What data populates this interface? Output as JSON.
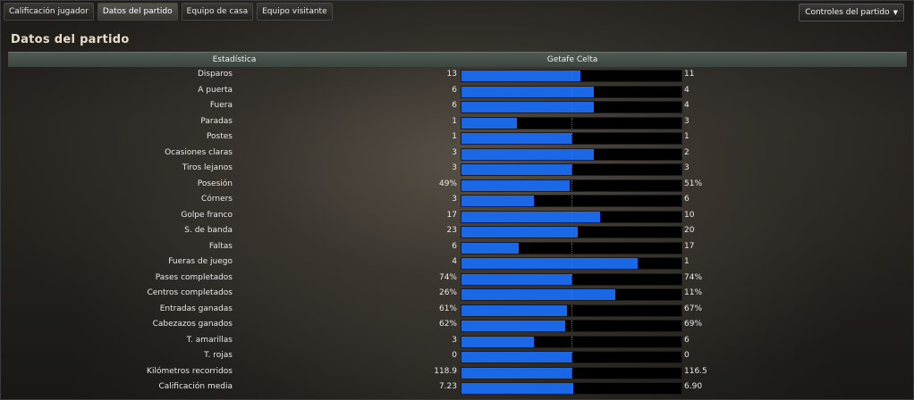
{
  "tabs": [
    {
      "label": "Calificación jugador"
    },
    {
      "label": "Datos del partido"
    },
    {
      "label": "Equipo de casa"
    },
    {
      "label": "Equipo visitante"
    }
  ],
  "active_tab": 1,
  "controls_label": "Controles del partido",
  "page_title": "Datos del partido",
  "table": {
    "stat_header": "Estadística",
    "match_header": "Getafe Celta",
    "rows": [
      {
        "label": "Disparos",
        "home": "13",
        "away": "11",
        "home_share": 0.54
      },
      {
        "label": "A puerta",
        "home": "6",
        "away": "4",
        "home_share": 0.6
      },
      {
        "label": "Fuera",
        "home": "6",
        "away": "4",
        "home_share": 0.6
      },
      {
        "label": "Paradas",
        "home": "1",
        "away": "3",
        "home_share": 0.25
      },
      {
        "label": "Postes",
        "home": "1",
        "away": "1",
        "home_share": 0.5
      },
      {
        "label": "Ocasiones claras",
        "home": "3",
        "away": "2",
        "home_share": 0.6
      },
      {
        "label": "Tiros lejanos",
        "home": "3",
        "away": "3",
        "home_share": 0.5
      },
      {
        "label": "Posesión",
        "home": "49%",
        "away": "51%",
        "home_share": 0.49
      },
      {
        "label": "Córners",
        "home": "3",
        "away": "6",
        "home_share": 0.33
      },
      {
        "label": "Golpe franco",
        "home": "17",
        "away": "10",
        "home_share": 0.63
      },
      {
        "label": "S. de banda",
        "home": "23",
        "away": "20",
        "home_share": 0.53
      },
      {
        "label": "Faltas",
        "home": "6",
        "away": "17",
        "home_share": 0.26
      },
      {
        "label": "Fueras de juego",
        "home": "4",
        "away": "1",
        "home_share": 0.8
      },
      {
        "label": "Pases completados",
        "home": "74%",
        "away": "74%",
        "home_share": 0.5
      },
      {
        "label": "Centros completados",
        "home": "26%",
        "away": "11%",
        "home_share": 0.7
      },
      {
        "label": "Entradas ganadas",
        "home": "61%",
        "away": "67%",
        "home_share": 0.48
      },
      {
        "label": "Cabezazos ganados",
        "home": "62%",
        "away": "69%",
        "home_share": 0.47
      },
      {
        "label": "T. amarillas",
        "home": "3",
        "away": "6",
        "home_share": 0.33
      },
      {
        "label": "T. rojas",
        "home": "0",
        "away": "0",
        "home_share": 0.5
      },
      {
        "label": "Kilómetros recorridos",
        "home": "118.9",
        "away": "116.5",
        "home_share": 0.5
      },
      {
        "label": "Calificación media",
        "home": "7.23",
        "away": "6.90",
        "home_share": 0.51
      }
    ]
  },
  "colors": {
    "bar_fill": "#1a68e6",
    "bar_track": "#000000",
    "header_bg": "#46504a",
    "title": "#e8dccb"
  }
}
